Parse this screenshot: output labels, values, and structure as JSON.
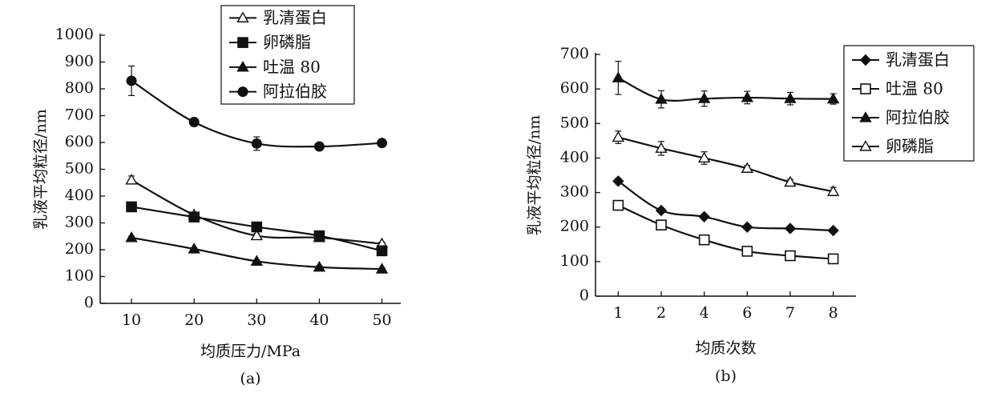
{
  "chart_data": [
    {
      "type": "line",
      "panel_label": "(a)",
      "xlabel": "均质压力/MPa",
      "ylabel": "乳液平均粒径/nm",
      "x": [
        10,
        20,
        30,
        40,
        50
      ],
      "xlim": [
        5,
        53
      ],
      "ylim": [
        0,
        1000
      ],
      "yticks": [
        0,
        100,
        200,
        300,
        400,
        500,
        600,
        700,
        800,
        900,
        1000
      ],
      "grid": false,
      "legend_position": "top-right",
      "series": [
        {
          "name": "乳清蛋白",
          "marker": "triangle-open",
          "values": [
            460,
            330,
            252,
            245,
            222
          ],
          "errors": [
            15,
            8,
            8,
            6,
            6
          ]
        },
        {
          "name": "卵磷脂",
          "marker": "square-filled",
          "values": [
            360,
            322,
            285,
            252,
            196
          ],
          "errors": [
            8,
            6,
            8,
            6,
            6
          ]
        },
        {
          "name": "吐温 80",
          "marker": "triangle-filled",
          "values": [
            245,
            203,
            157,
            135,
            128
          ],
          "errors": [
            5,
            5,
            5,
            5,
            5
          ]
        },
        {
          "name": "阿拉伯胶",
          "marker": "circle-filled",
          "values": [
            830,
            676,
            596,
            585,
            598
          ],
          "errors": [
            55,
            15,
            25,
            10,
            8
          ]
        }
      ]
    },
    {
      "type": "line",
      "panel_label": "(b)",
      "xlabel": "均质次数",
      "ylabel": "乳液平均粒径/nm",
      "categories": [
        "1",
        "2",
        "4",
        "6",
        "7",
        "8"
      ],
      "ylim": [
        0,
        700
      ],
      "yticks": [
        0,
        100,
        200,
        300,
        400,
        500,
        600,
        700
      ],
      "grid": false,
      "legend_position": "top-right",
      "series": [
        {
          "name": "乳清蛋白",
          "marker": "diamond-filled",
          "values": [
            333,
            248,
            230,
            200,
            196,
            190
          ],
          "errors": [
            8,
            6,
            6,
            5,
            5,
            5
          ]
        },
        {
          "name": "吐温 80",
          "marker": "square-open",
          "values": [
            263,
            206,
            163,
            130,
            117,
            108
          ],
          "errors": [
            8,
            8,
            8,
            6,
            6,
            6
          ]
        },
        {
          "name": "阿拉伯胶",
          "marker": "triangle-filled",
          "values": [
            632,
            570,
            572,
            575,
            572,
            571
          ],
          "errors": [
            48,
            25,
            22,
            18,
            18,
            15
          ]
        },
        {
          "name": "卵磷脂",
          "marker": "triangle-open",
          "values": [
            460,
            428,
            400,
            370,
            330,
            303
          ],
          "errors": [
            18,
            20,
            18,
            8,
            8,
            12
          ]
        }
      ]
    }
  ]
}
